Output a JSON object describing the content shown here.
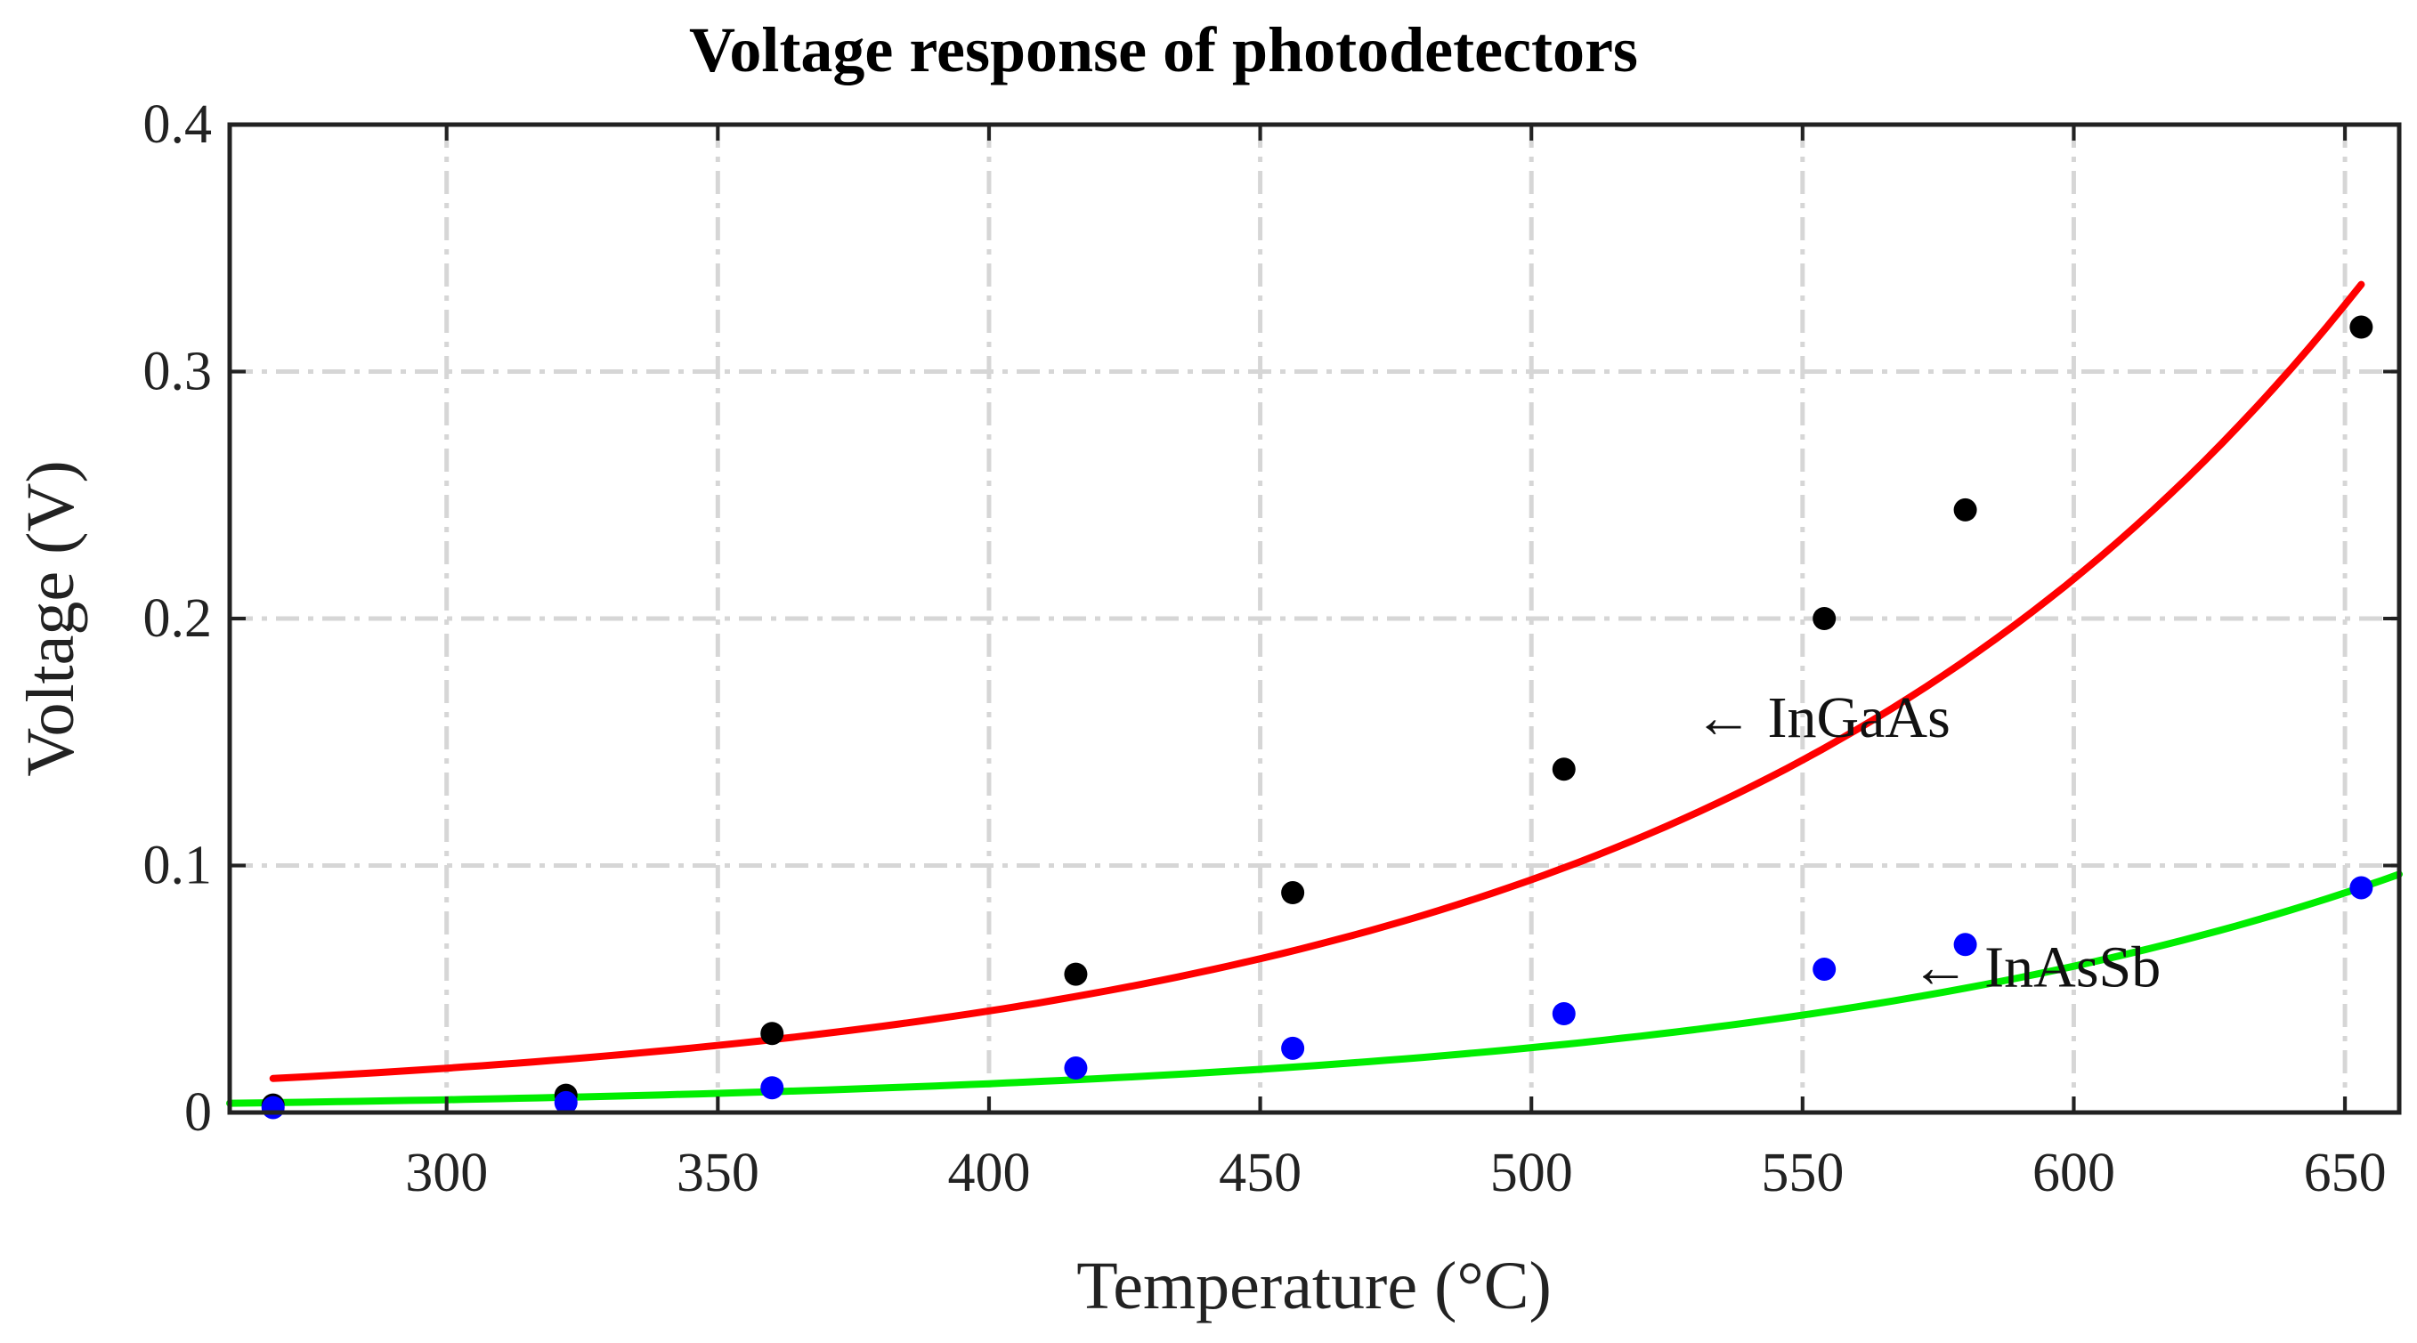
{
  "chart_data": {
    "type": "scatter",
    "title": "Voltage response of photodetectors",
    "xlabel": "Temperature (°C)",
    "ylabel": "Voltage (V)",
    "xlim": [
      260,
      660
    ],
    "ylim": [
      0,
      0.4
    ],
    "xticks": [
      300,
      350,
      400,
      450,
      500,
      550,
      600,
      650
    ],
    "xtick_labels": [
      "300",
      "350",
      "400",
      "450",
      "500",
      "550",
      "600",
      "650"
    ],
    "yticks": [
      0,
      0.1,
      0.2,
      0.3,
      0.4
    ],
    "ytick_labels": [
      "0",
      "0.1",
      "0.2",
      "0.3",
      "0.4"
    ],
    "grid": true,
    "series": [
      {
        "name": "InGaAs",
        "marker_color": "#000000",
        "fit_color": "#ff0000",
        "x": [
          268,
          322,
          360,
          416,
          456,
          506,
          554,
          580,
          653
        ],
        "y": [
          0.003,
          0.007,
          0.032,
          0.056,
          0.089,
          0.139,
          0.2,
          0.244,
          0.318
        ],
        "fit": {
          "model": "exponential",
          "x_range": [
            268,
            653
          ],
          "a": 0.01376,
          "b": 0.008294,
          "x0": 268
        }
      },
      {
        "name": "InAsSb",
        "marker_color": "#0000ff",
        "fit_color": "#00ee00",
        "x": [
          268,
          322,
          360,
          416,
          456,
          506,
          554,
          580,
          653
        ],
        "y": [
          0.002,
          0.004,
          0.01,
          0.018,
          0.026,
          0.04,
          0.058,
          0.068,
          0.091
        ],
        "fit": {
          "model": "exponential",
          "x_range": [
            260,
            660
          ],
          "a": 0.00373,
          "b": 0.008132,
          "x0": 260
        }
      }
    ],
    "annotations": [
      {
        "text": "← InGaAs",
        "x": 530,
        "y": 0.16
      },
      {
        "text": "← InAsSb",
        "x": 570,
        "y": 0.059
      }
    ]
  }
}
